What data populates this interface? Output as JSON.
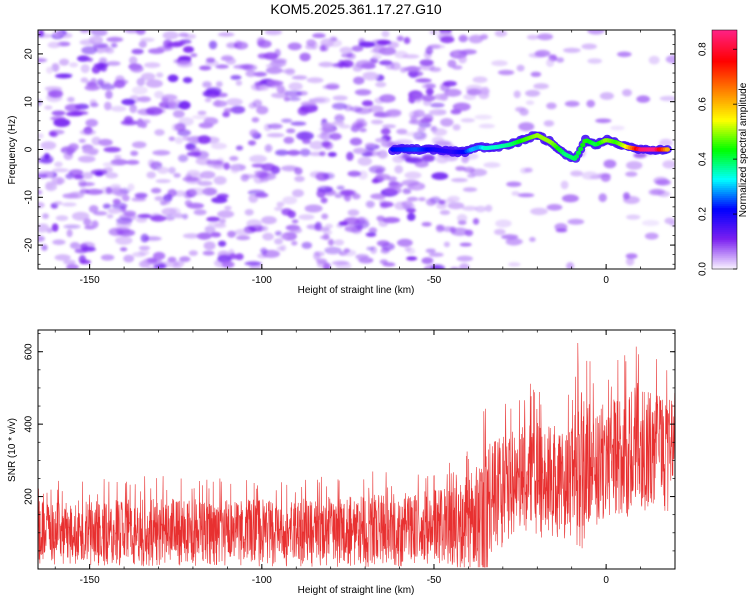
{
  "title": "KOM5.2025.361.17.27.G10",
  "chart_data": [
    {
      "type": "heatmap",
      "name": "spectrogram",
      "xlabel": "Height of straight line (km)",
      "ylabel": "Frequency (Hz)",
      "xlim": [
        -165,
        20
      ],
      "ylim": [
        -25,
        25
      ],
      "xticks": [
        -150,
        -100,
        -50,
        0
      ],
      "xtick_labels": [
        "-150",
        "-100",
        "-50",
        "0"
      ],
      "yticks": [
        -20,
        -10,
        0,
        10,
        20
      ],
      "ytick_labels": [
        "-20",
        "-10",
        "0",
        "10",
        "20"
      ],
      "signal_track": {
        "description_values": "frequency (Hz) of dominant spectral energy vs height (km)",
        "x": [
          -62,
          -55,
          -50,
          -45,
          -41,
          -39,
          -37,
          -35,
          -32,
          -28,
          -24,
          -20,
          -16,
          -12,
          -9,
          -6,
          -3,
          0,
          3,
          6,
          10,
          14,
          18
        ],
        "y": [
          0,
          0,
          0,
          -0.5,
          -0.5,
          0,
          0.5,
          0.3,
          0.5,
          1,
          2,
          3,
          1.5,
          -1,
          -2,
          2,
          1,
          2,
          1.5,
          0.5,
          0,
          0,
          0
        ],
        "amplitude": [
          0.22,
          0.25,
          0.2,
          0.18,
          0.22,
          0.3,
          0.28,
          0.35,
          0.35,
          0.38,
          0.45,
          0.5,
          0.5,
          0.38,
          0.4,
          0.45,
          0.4,
          0.5,
          0.45,
          0.55,
          0.85,
          0.88,
          0.6
        ]
      },
      "colorbar": {
        "label": "Normalized spectral amplitude",
        "min": 0.0,
        "max": 0.87,
        "ticks": [
          0.0,
          0.2,
          0.4,
          0.6,
          0.8
        ],
        "tick_labels": [
          "0.0",
          "0.2",
          "0.4",
          "0.6",
          "0.8"
        ],
        "colors": [
          "#f8f0ff",
          "#7a1ff0",
          "#0000ff",
          "#00ffff",
          "#00ff00",
          "#ffff00",
          "#ff8000",
          "#ff0000",
          "#ff2080"
        ]
      }
    },
    {
      "type": "line",
      "name": "snr-trace",
      "xlabel": "Height of straight line (km)",
      "ylabel": "SNR (10 * v/v)",
      "xlim": [
        -165,
        20
      ],
      "ylim": [
        0,
        660
      ],
      "xticks": [
        -150,
        -100,
        -50,
        0
      ],
      "xtick_labels": [
        "-150",
        "-100",
        "-50",
        "0"
      ],
      "yticks": [
        200,
        400,
        600
      ],
      "ytick_labels": [
        "200",
        "400",
        "600"
      ],
      "series": [
        {
          "name": "SNR",
          "color": "#e83030",
          "envelope": {
            "x": [
              -165,
              -150,
              -130,
              -110,
              -90,
              -70,
              -55,
              -45,
              -38,
              -36,
              -35,
              -34,
              -30,
              -25,
              -20,
              -15,
              -10,
              -8,
              -5,
              0,
              5,
              8,
              12,
              16,
              20
            ],
            "mean": [
              100,
              100,
              100,
              100,
              100,
              105,
              110,
              120,
              130,
              150,
              170,
              190,
              210,
              240,
              250,
              240,
              250,
              260,
              280,
              300,
              320,
              330,
              330,
              320,
              310
            ],
            "peak": [
              250,
              250,
              260,
              250,
              260,
              270,
              280,
              300,
              380,
              420,
              660,
              450,
              470,
              500,
              520,
              500,
              530,
              660,
              580,
              560,
              600,
              660,
              600,
              590,
              560
            ]
          }
        }
      ]
    }
  ]
}
